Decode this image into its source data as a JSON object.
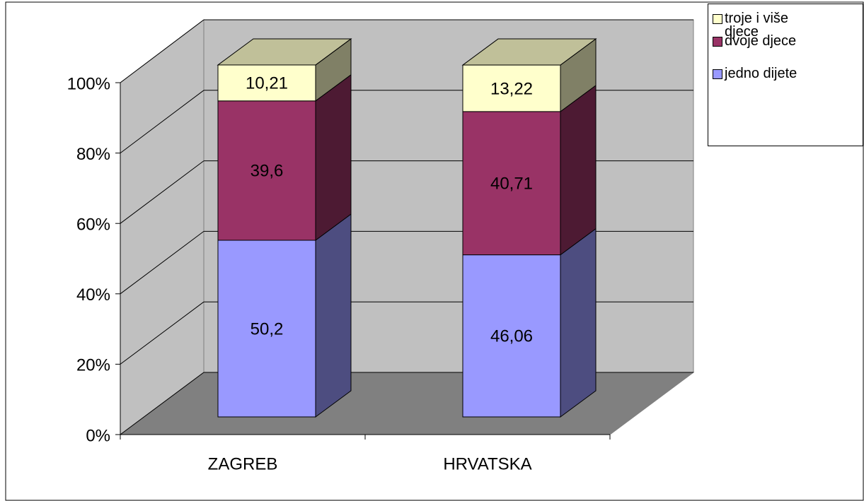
{
  "chart_data": {
    "type": "bar3d_stacked",
    "categories": [
      "ZAGREB",
      "HRVATSKA"
    ],
    "series": [
      {
        "name": "jedno dijete",
        "color": "#9999ff",
        "side_color": "#4d4d80",
        "values": [
          50.2,
          46.06
        ],
        "value_labels": [
          "50,2",
          "46,06"
        ]
      },
      {
        "name": "dvoje djece",
        "color": "#993366",
        "side_color": "#4d1a33",
        "values": [
          39.6,
          40.71
        ],
        "value_labels": [
          "39,6",
          "40,71"
        ]
      },
      {
        "name": "troje i više djece",
        "color": "#ffffcc",
        "side_color": "#808066",
        "top_color": "#c0c099",
        "values": [
          10.21,
          13.22
        ],
        "value_labels": [
          "10,21",
          "13,22"
        ]
      }
    ],
    "ylim": [
      0,
      100
    ],
    "yticks": [
      {
        "value": 0,
        "label": "0%"
      },
      {
        "value": 20,
        "label": "20%"
      },
      {
        "value": 40,
        "label": "40%"
      },
      {
        "value": 60,
        "label": "60%"
      },
      {
        "value": 80,
        "label": "80%"
      },
      {
        "value": 100,
        "label": "100%"
      }
    ],
    "grid": true,
    "legend": "top-right"
  }
}
